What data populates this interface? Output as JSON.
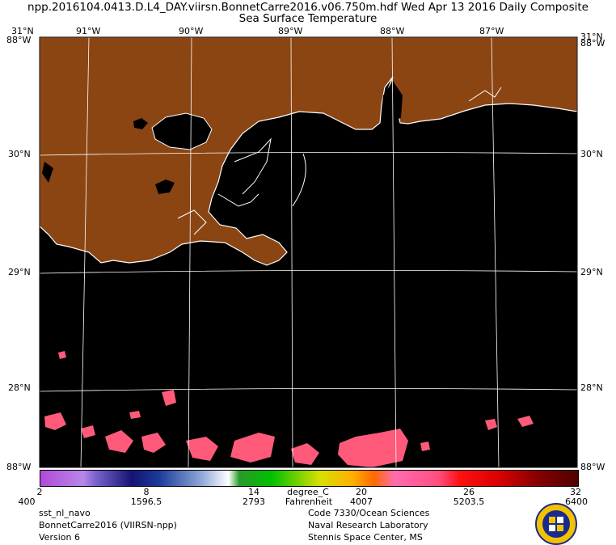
{
  "header": {
    "title_line1": "npp.2016104.0413.D.L4_DAY.viirsn.BonnetCarre2016.v06.750m.hdf   Wed Apr 13 2016 Daily Composite",
    "title_line2": "Sea Surface Temperature"
  },
  "map": {
    "land_color": "#8B4513",
    "water_color": "#000000",
    "coast_color": "#ffffff",
    "top_lon_labels": [
      "31°N",
      "91°W",
      "90°W",
      "89°W",
      "88°W",
      "87°W",
      "31°N"
    ],
    "top_left_overlap": "88°W",
    "top_right_overlap": "88°W",
    "lat_labels": [
      "30°N",
      "29°N",
      "28°N"
    ],
    "bottom_left": "88°W",
    "bottom_right": "88°W"
  },
  "colorbar": {
    "celsius_ticks": [
      "2",
      "8",
      "14",
      "20",
      "26",
      "32"
    ],
    "fahrenheit_ticks": [
      "400",
      "1596.5",
      "2793",
      "4007",
      "5203.5",
      "6400"
    ],
    "unit_celsius": "degree_C",
    "unit_fahrenheit": "Fahrenheit"
  },
  "footer": {
    "left": [
      "sst_nl_navo",
      "BonnetCarre2016 (VIIRSN-npp)",
      "Version 6"
    ],
    "center": [
      "Code 7330/Ocean Sciences",
      "Naval Research Laboratory",
      "Stennis Space Center, MS"
    ]
  }
}
